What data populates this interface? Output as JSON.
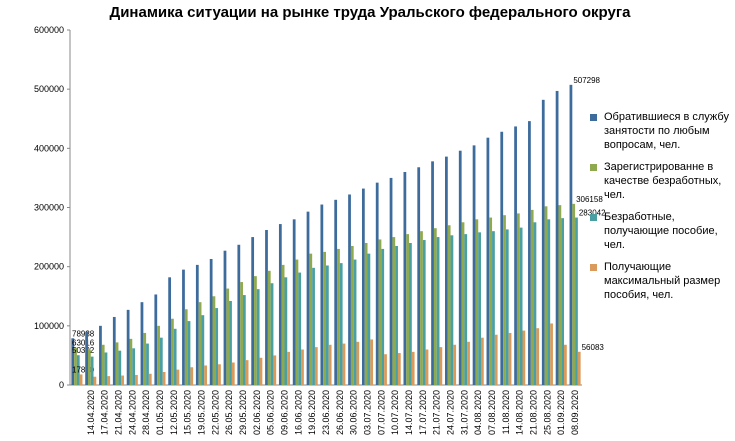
{
  "chart_data": {
    "type": "bar",
    "title": "Динамика ситуации  на рынке труда Уральского федерального округа",
    "categories": [
      null,
      "14.04.2020",
      "17.04.2020",
      "21.04.2020",
      "24.04.2020",
      "28.04.2020",
      "01.05.2020",
      "12.05.2020",
      "15.05.2020",
      "19.05.2020",
      "22.05.2020",
      "26.05.2020",
      "29.05.2020",
      "02.06.2020",
      "05.06.2020",
      "09.06.2020",
      "16.06.2020",
      "19.06.2020",
      "23.06.2020",
      "26.06.2020",
      "30.06.2020",
      "03.07.2020",
      "07.07.2020",
      "10.07.2020",
      "14.07.2020",
      "17.07.2020",
      "21.07.2020",
      "24.07.2020",
      "31.07.2020",
      "04.08.2020",
      "07.08.2020",
      "11.08.2020",
      "14.08.2020",
      "21.08.2020",
      "25.08.2020",
      "01.09.2020",
      "08.09.2020"
    ],
    "series": [
      {
        "name": "Обратившиеся в службу занятости по любым вопросам, чел.",
        "color": "#3d6b9c",
        "values": [
          78938,
          90000,
          100000,
          115000,
          127000,
          140000,
          153000,
          182000,
          195000,
          203000,
          213000,
          227000,
          237000,
          250000,
          262000,
          272000,
          280000,
          293000,
          305000,
          313000,
          322000,
          332000,
          342000,
          350000,
          360000,
          368000,
          378000,
          386000,
          396000,
          405000,
          418000,
          428000,
          437000,
          446000,
          482000,
          497000,
          507298
        ]
      },
      {
        "name": "Зарегистрированне в качестве безработных, чел.",
        "color": "#8fa94f",
        "values": [
          63016,
          60000,
          68000,
          72000,
          78000,
          88000,
          100000,
          112000,
          128000,
          140000,
          150000,
          163000,
          174000,
          184000,
          193000,
          203000,
          212000,
          222000,
          225000,
          230000,
          235000,
          240000,
          246000,
          250000,
          255000,
          260000,
          265000,
          270000,
          275000,
          280000,
          283000,
          287000,
          290000,
          296000,
          302000,
          304000,
          306158
        ]
      },
      {
        "name": "Безработные, получающие пособие, чел.",
        "color": "#4a9fa3",
        "values": [
          50392,
          48000,
          55000,
          58000,
          62000,
          70000,
          80000,
          95000,
          108000,
          118000,
          130000,
          142000,
          152000,
          162000,
          172000,
          182000,
          190000,
          198000,
          202000,
          206000,
          212000,
          222000,
          230000,
          235000,
          240000,
          245000,
          250000,
          253000,
          255000,
          258000,
          260000,
          263000,
          266000,
          275000,
          280000,
          282000,
          283042
        ]
      },
      {
        "name": "Получающие максимальный размер пособия, чел.",
        "color": "#d99a5b",
        "values": [
          17860,
          14000,
          15000,
          16000,
          17000,
          19000,
          22000,
          26000,
          30000,
          33000,
          35000,
          38000,
          42000,
          46000,
          50000,
          56000,
          60000,
          64000,
          68000,
          70000,
          73000,
          77000,
          52000,
          54000,
          56000,
          60000,
          64000,
          68000,
          73000,
          80000,
          85000,
          88000,
          92000,
          96000,
          104000,
          68000,
          56083
        ]
      }
    ],
    "ylim": [
      0,
      600000
    ],
    "yticks": [
      0,
      100000,
      200000,
      300000,
      400000,
      500000,
      600000
    ],
    "grid": false
  }
}
